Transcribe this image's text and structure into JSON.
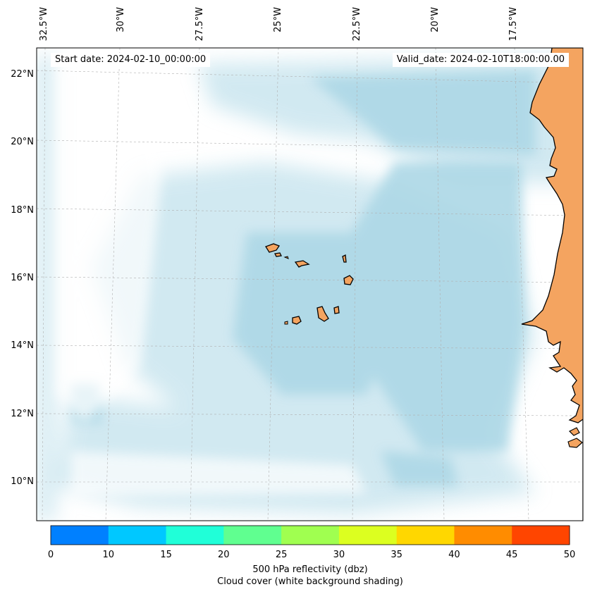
{
  "map": {
    "start_label": "Start date: 2024-02-10_00:00:00",
    "valid_label": "Valid_date: 2024-02-10T18:00:00.00",
    "lat_labels": [
      "22°N",
      "20°N",
      "18°N",
      "16°N",
      "14°N",
      "12°N",
      "10°N"
    ],
    "lon_labels": [
      "32.5°W",
      "30°W",
      "27.5°W",
      "25°W",
      "22.5°W",
      "20°W",
      "17.5°W"
    ],
    "colors": {
      "land": "#f4a460",
      "coast": "#000000",
      "cloud": "#add8e6",
      "grid": "#b0b0b0"
    }
  },
  "colorbar": {
    "ticks": [
      "0",
      "10",
      "15",
      "20",
      "25",
      "30",
      "35",
      "40",
      "45",
      "50"
    ],
    "colors": [
      "#0080ff",
      "#00c8ff",
      "#20ffd8",
      "#60ff90",
      "#a0ff50",
      "#dcff20",
      "#ffd700",
      "#ff8c00",
      "#ff4500"
    ],
    "label_line1": "500 hPa reflectivity (dbz)",
    "label_line2": "Cloud cover (white background shading)"
  }
}
